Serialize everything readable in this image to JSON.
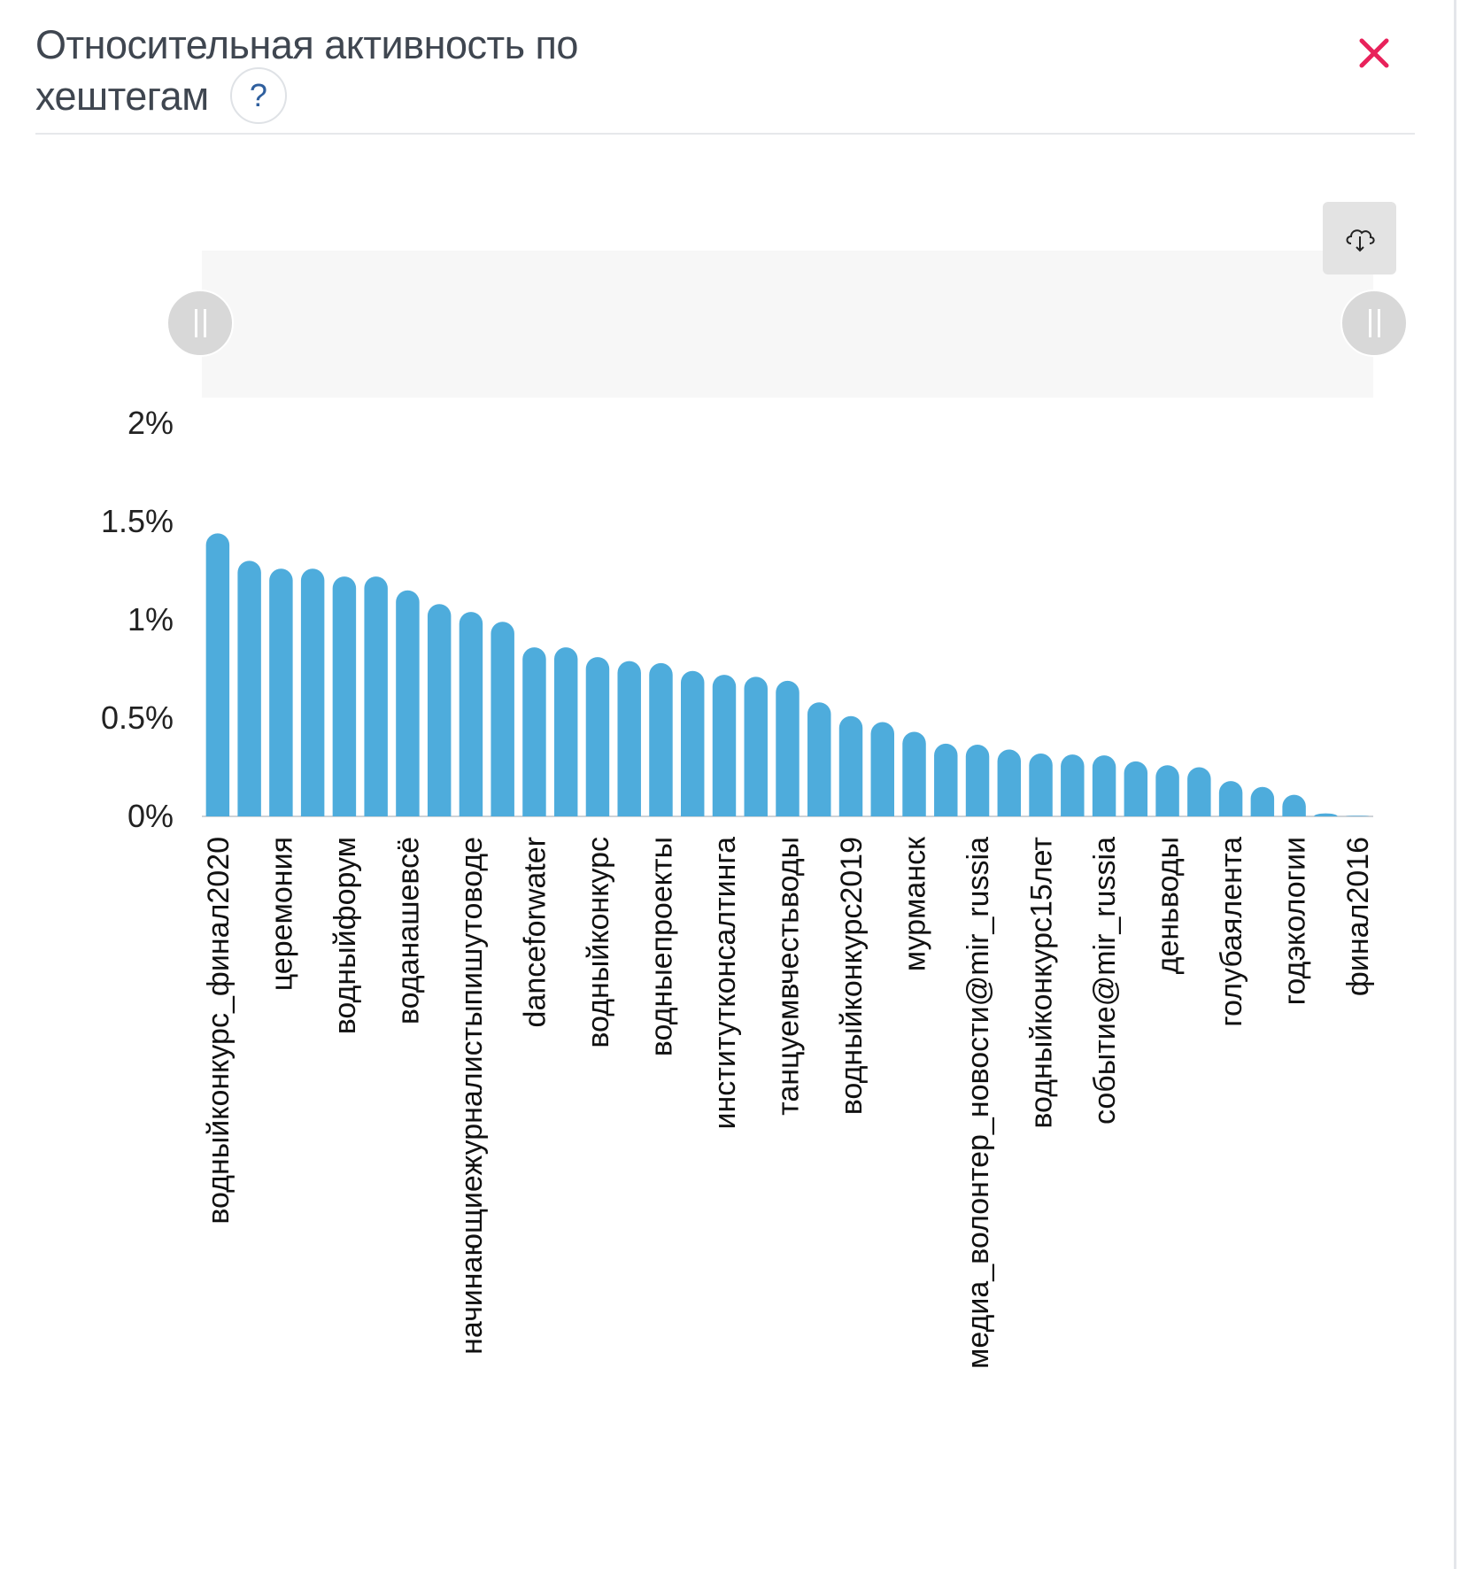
{
  "panel": {
    "title_line1": "Относительная активность по",
    "title_line2": "хештегам",
    "help_icon": "question-mark-icon",
    "help_glyph": "?",
    "close_icon": "close-x-icon",
    "download_icon": "cloud-download-icon"
  },
  "colors": {
    "bar": "#4eacdc",
    "close": "#e8225b",
    "help": "#2f5f9e",
    "text": "#3f4650"
  },
  "chart_data": {
    "type": "bar",
    "title": "Относительная активность по хештегам",
    "xlabel": "",
    "ylabel": "",
    "ylim": [
      0,
      2
    ],
    "yticks": [
      0,
      0.5,
      1,
      1.5,
      2
    ],
    "ytick_labels": [
      "0%",
      "0.5%",
      "1%",
      "1.5%",
      "2%"
    ],
    "grid": false,
    "legend": "none",
    "label_every": 2,
    "categories": [
      "водныйконкурс_финал2020",
      "",
      "церемония",
      "",
      "водныйфорум",
      "",
      "воданашевсё",
      "",
      "начинающиежурналистыпишутоводе",
      "",
      "danceforwater",
      "",
      "водныйконкурс",
      "",
      "водныепроекты",
      "",
      "институтконсалтинга",
      "",
      "танцуемвчестьводы",
      "",
      "водныйконкурс2019",
      "",
      "мурманск",
      "",
      "медиа_волонтер_новости@mir_russia",
      "",
      "водныйконкурс15лет",
      "",
      "событие@mir_russia",
      "",
      "деньводы",
      "",
      "голубаялента",
      "",
      "годэкологии",
      "",
      "финал2016"
    ],
    "values": [
      1.44,
      1.3,
      1.26,
      1.26,
      1.22,
      1.22,
      1.15,
      1.08,
      1.04,
      0.99,
      0.86,
      0.86,
      0.81,
      0.79,
      0.78,
      0.74,
      0.72,
      0.71,
      0.69,
      0.58,
      0.51,
      0.48,
      0.43,
      0.37,
      0.365,
      0.34,
      0.32,
      0.315,
      0.31,
      0.28,
      0.26,
      0.25,
      0.18,
      0.15,
      0.11,
      0.015,
      0.003
    ],
    "unit": "%"
  }
}
